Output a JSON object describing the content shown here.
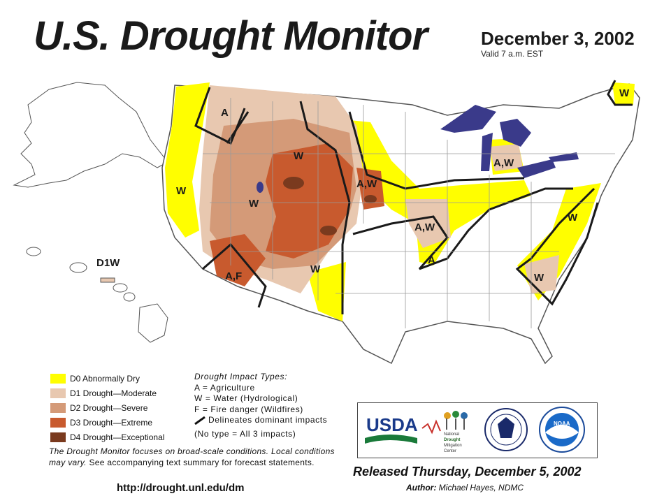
{
  "title": "U.S. Drought Monitor",
  "date": "December 3, 2002",
  "valid": "Valid 7 a.m. EST",
  "colors": {
    "d0": "#fffe00",
    "d1": "#e8c8b0",
    "d2": "#d49a78",
    "d3": "#c85a2e",
    "d4": "#7a3a1e",
    "water": "#3a3a8a",
    "land": "#ffffff"
  },
  "legend": [
    {
      "code": "D0",
      "label": "D0 Abnormally Dry",
      "color": "#fffe00"
    },
    {
      "code": "D1",
      "label": "D1 Drought—Moderate",
      "color": "#e8c8b0"
    },
    {
      "code": "D2",
      "label": "D2 Drought—Severe",
      "color": "#d49a78"
    },
    {
      "code": "D3",
      "label": "D3 Drought—Extreme",
      "color": "#c85a2e"
    },
    {
      "code": "D4",
      "label": "D4 Drought—Exceptional",
      "color": "#7a3a1e"
    }
  ],
  "impacts": {
    "heading": "Drought Impact Types:",
    "a": "A = Agriculture",
    "w": "W = Water (Hydrological)",
    "f": "F = Fire danger (Wildfires)",
    "delineates": "Delineates dominant impacts",
    "no_type": "(No type = All 3 impacts)"
  },
  "map_labels": {
    "hawaii": "D1W",
    "w": "W",
    "a": "A",
    "aw": "A,W",
    "af": "A,F"
  },
  "note": {
    "italic": "The Drought Monitor focuses on broad-scale conditions. Local conditions may vary.",
    "rest": " See accompanying text summary for forecast statements."
  },
  "url": "http://drought.unl.edu/dm",
  "logos": {
    "usda": "USDA",
    "ndmc_line1": "National",
    "ndmc_line2": "Drought",
    "ndmc_line3": "Mitigation",
    "ndmc_line4": "Center",
    "noaa": "NOAA"
  },
  "released": "Released Thursday, December 5, 2002",
  "author_label": "Author:",
  "author_name": "Michael Hayes, NDMC"
}
